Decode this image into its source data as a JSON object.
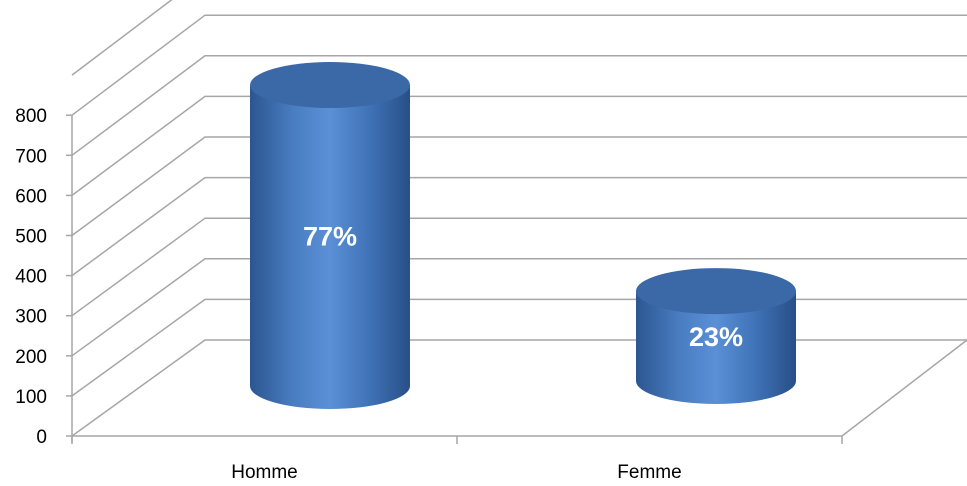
{
  "chart_data": {
    "type": "bar",
    "categories": [
      "Homme",
      "Femme"
    ],
    "values": [
      770,
      230
    ],
    "data_labels": [
      "77%",
      "23%"
    ],
    "ylim": [
      0,
      800
    ],
    "yticks": [
      0,
      100,
      200,
      300,
      400,
      500,
      600,
      700,
      800
    ],
    "grid": true,
    "legend": "none",
    "style": "3d-cylinder",
    "colors": {
      "bar": "#4f81bd",
      "bar_dark": "#2e5a96",
      "bar_top": "#3b68a6",
      "grid": "#a6a6a6",
      "label": "#ffffff"
    }
  }
}
